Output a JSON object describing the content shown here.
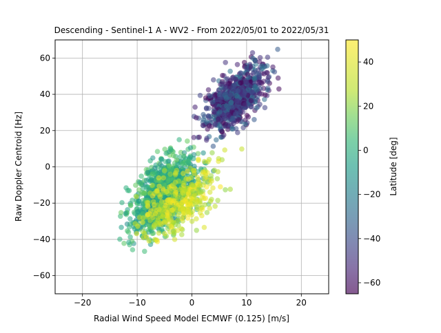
{
  "chart_data": {
    "type": "scatter",
    "title": "Descending - Sentinel-1 A - WV2 - From 2022/05/01 to 2022/05/31",
    "xlabel": "Radial Wind Speed Model ECMWF (0.125) [m/s]",
    "ylabel": "Raw Doppler Centroid [Hz]",
    "xlim": [
      -25,
      25
    ],
    "ylim": [
      -70,
      70
    ],
    "xticks": [
      -20,
      -10,
      0,
      10,
      20
    ],
    "xtick_labels": [
      "−20",
      "−10",
      "0",
      "10",
      "20"
    ],
    "yticks": [
      -60,
      -40,
      -20,
      0,
      20,
      40,
      60
    ],
    "ytick_labels": [
      "−60",
      "−40",
      "−20",
      "0",
      "20",
      "40",
      "60"
    ],
    "grid": true,
    "marker_alpha": 0.55,
    "colorbar": {
      "label": "Latitude [deg]",
      "range": [
        -65,
        50
      ],
      "ticks": [
        -60,
        -40,
        -20,
        0,
        20,
        40
      ],
      "tick_labels": [
        "−60",
        "−40",
        "−20",
        "0",
        "20",
        "40"
      ],
      "colormap": "viridis"
    },
    "clusters": [
      {
        "latitude_range": [
          -65,
          -25
        ],
        "x_range": [
          -2,
          18
        ],
        "y_range": [
          5,
          70
        ],
        "approx_points": 900
      },
      {
        "latitude_range": [
          -15,
          15
        ],
        "x_range": [
          -16,
          6
        ],
        "y_range": [
          -55,
          25
        ],
        "approx_points": 1100
      },
      {
        "latitude_range": [
          20,
          50
        ],
        "x_range": [
          -16,
          12
        ],
        "y_range": [
          -58,
          20
        ],
        "approx_points": 350
      }
    ]
  }
}
